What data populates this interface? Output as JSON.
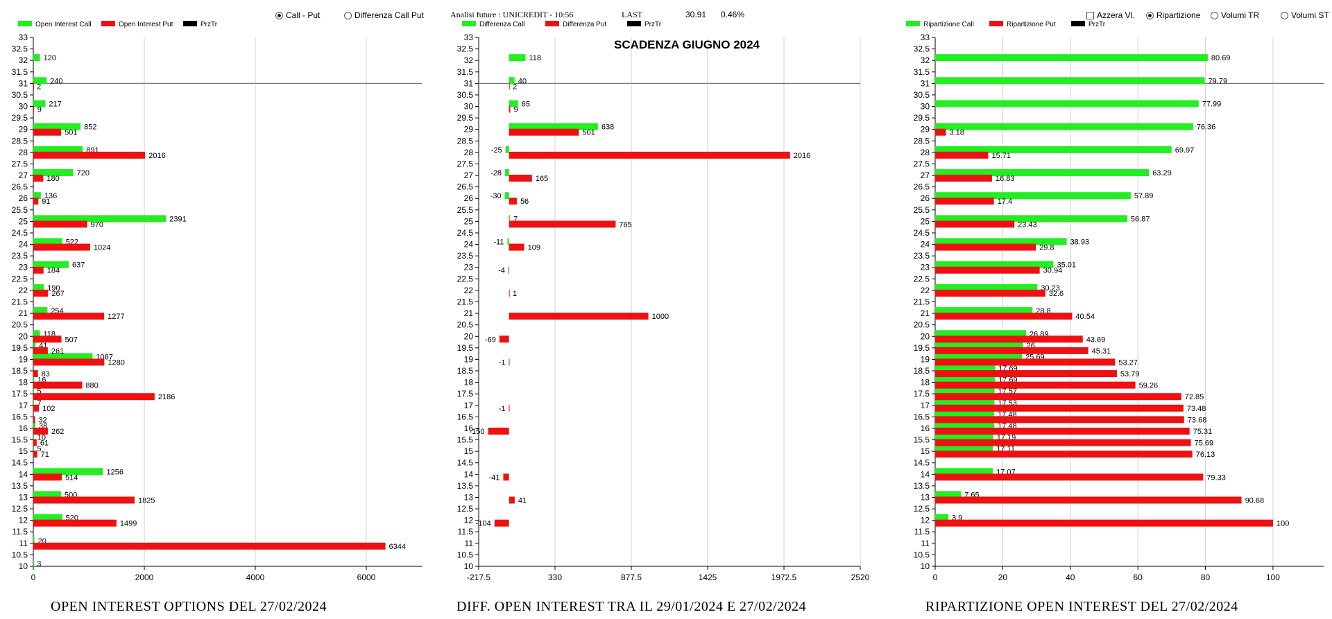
{
  "header": {
    "radio_call_put": "Call - Put",
    "radio_diff": "Differenza Call Put",
    "analysis_label": "Analisi future : UNICREDIT - 10:56",
    "last_label": "LAST",
    "last_value": "30.91",
    "last_change": "0.46%",
    "check_azzera": "Azzera Vl.",
    "radio_ripartizione": "Ripartizione",
    "radio_volumi_tr": "Volumi TR",
    "radio_volumi_st": "Volumi ST"
  },
  "colors": {
    "call": "#22ee22",
    "put": "#ee1111",
    "przTr": "#000000",
    "grid": "#d0d0d0"
  },
  "chart_data": [
    {
      "type": "bar",
      "orientation": "horizontal",
      "title": "OPEN INTEREST OPTIONS DEL 27/02/2024",
      "legend": [
        "Open Interest Call",
        "Open Interest Put",
        "PrzTr"
      ],
      "strike_range": [
        10,
        33
      ],
      "xlim": [
        0,
        7000
      ],
      "xticks": [
        "0",
        "2000",
        "4000",
        "6000"
      ],
      "xtick_values": [
        0,
        2000,
        4000,
        6000
      ],
      "price_line": 31,
      "series": [
        {
          "name": "Open Interest Call",
          "points": [
            {
              "s": 32,
              "v": 120
            },
            {
              "s": 31,
              "v": 240
            },
            {
              "s": 30,
              "v": 217
            },
            {
              "s": 29,
              "v": 852
            },
            {
              "s": 28,
              "v": 891
            },
            {
              "s": 27,
              "v": 720
            },
            {
              "s": 26,
              "v": 136
            },
            {
              "s": 25,
              "v": 2391
            },
            {
              "s": 24,
              "v": 522
            },
            {
              "s": 23,
              "v": 637
            },
            {
              "s": 22,
              "v": 190
            },
            {
              "s": 21,
              "v": 254
            },
            {
              "s": 20,
              "v": 118
            },
            {
              "s": 19.5,
              "v": 41
            },
            {
              "s": 19,
              "v": 1067
            },
            {
              "s": 18,
              "v": 16
            },
            {
              "s": 17.5,
              "v": 5
            },
            {
              "s": 17,
              "v": 7
            },
            {
              "s": 16,
              "v": 38
            },
            {
              "s": 15.5,
              "v": 10
            },
            {
              "s": 15,
              "v": 5
            },
            {
              "s": 14,
              "v": 1256
            },
            {
              "s": 13,
              "v": 500
            },
            {
              "s": 12,
              "v": 520
            },
            {
              "s": 11,
              "v": 20
            },
            {
              "s": 10,
              "v": 3
            }
          ]
        },
        {
          "name": "Open Interest Put",
          "points": [
            {
              "s": 31,
              "v": 2
            },
            {
              "s": 30,
              "v": 9
            },
            {
              "s": 29,
              "v": 501
            },
            {
              "s": 28,
              "v": 2016
            },
            {
              "s": 27,
              "v": 180
            },
            {
              "s": 26,
              "v": 91
            },
            {
              "s": 25,
              "v": 970
            },
            {
              "s": 24,
              "v": 1024
            },
            {
              "s": 23,
              "v": 184
            },
            {
              "s": 22,
              "v": 267
            },
            {
              "s": 21,
              "v": 1277
            },
            {
              "s": 20,
              "v": 507
            },
            {
              "s": 19.5,
              "v": 261
            },
            {
              "s": 19,
              "v": 1280
            },
            {
              "s": 18.5,
              "v": 83
            },
            {
              "s": 18,
              "v": 880
            },
            {
              "s": 17.5,
              "v": 2186
            },
            {
              "s": 17,
              "v": 102
            },
            {
              "s": 16.5,
              "v": 32
            },
            {
              "s": 16,
              "v": 262
            },
            {
              "s": 15.5,
              "v": 61
            },
            {
              "s": 15,
              "v": 71
            },
            {
              "s": 14,
              "v": 514
            },
            {
              "s": 13,
              "v": 1825
            },
            {
              "s": 12,
              "v": 1499
            },
            {
              "s": 11,
              "v": 6344
            }
          ]
        }
      ]
    },
    {
      "type": "bar",
      "orientation": "horizontal",
      "title": "DIFF. OPEN INTEREST TRA IL 29/01/2024 E 27/02/2024",
      "subtitle": "SCADENZA GIUGNO 2024",
      "legend": [
        "Differenza Call",
        "Differenza Put",
        "PrzTr"
      ],
      "strike_range": [
        10,
        33
      ],
      "xlim": [
        -217.5,
        2520
      ],
      "xticks": [
        "-217.5",
        "330",
        "877.5",
        "1425",
        "1972.5",
        "2520"
      ],
      "xtick_values": [
        -217.5,
        330,
        877.5,
        1425,
        1972.5,
        2520
      ],
      "price_line": 31,
      "series": [
        {
          "name": "Differenza Call",
          "points": [
            {
              "s": 32,
              "v": 118
            },
            {
              "s": 31,
              "v": 40
            },
            {
              "s": 30,
              "v": 65
            },
            {
              "s": 29,
              "v": 638
            },
            {
              "s": 28,
              "v": -25
            },
            {
              "s": 27,
              "v": -28
            },
            {
              "s": 26,
              "v": -30
            },
            {
              "s": 25,
              "v": 7
            },
            {
              "s": 24,
              "v": -11
            }
          ]
        },
        {
          "name": "Differenza Put",
          "points": [
            {
              "s": 31,
              "v": 2
            },
            {
              "s": 30,
              "v": 9
            },
            {
              "s": 29,
              "v": 501
            },
            {
              "s": 28,
              "v": 2016
            },
            {
              "s": 27,
              "v": 165
            },
            {
              "s": 26,
              "v": 56
            },
            {
              "s": 25,
              "v": 765
            },
            {
              "s": 24,
              "v": 109
            },
            {
              "s": 23,
              "v": -4
            },
            {
              "s": 22,
              "v": 1
            },
            {
              "s": 21,
              "v": 1000
            },
            {
              "s": 20,
              "v": -69
            },
            {
              "s": 19,
              "v": -1
            },
            {
              "s": 17,
              "v": -1
            },
            {
              "s": 16,
              "v": -150
            },
            {
              "s": 14,
              "v": -41
            },
            {
              "s": 13,
              "v": 41
            },
            {
              "s": 12,
              "v": -104
            }
          ]
        }
      ]
    },
    {
      "type": "bar",
      "orientation": "horizontal",
      "title": "RIPARTIZIONE OPEN INTEREST DEL 27/02/2024",
      "legend": [
        "Ripartizione Call",
        "Ripartizione Put",
        "PrzTr"
      ],
      "strike_range": [
        10,
        33
      ],
      "xlim": [
        0,
        115
      ],
      "xticks": [
        "0",
        "20",
        "40",
        "60",
        "80",
        "100"
      ],
      "xtick_values": [
        0,
        20,
        40,
        60,
        80,
        100
      ],
      "price_line": 31,
      "series": [
        {
          "name": "Ripartizione Call",
          "points": [
            {
              "s": 32,
              "v": 80.69
            },
            {
              "s": 31,
              "v": 79.79
            },
            {
              "s": 30,
              "v": 77.99
            },
            {
              "s": 29,
              "v": 76.36
            },
            {
              "s": 28,
              "v": 69.97
            },
            {
              "s": 27,
              "v": 63.29
            },
            {
              "s": 26,
              "v": 57.89
            },
            {
              "s": 25,
              "v": 56.87
            },
            {
              "s": 24,
              "v": 38.93
            },
            {
              "s": 23,
              "v": 35.01
            },
            {
              "s": 22,
              "v": 30.23
            },
            {
              "s": 21,
              "v": 28.8
            },
            {
              "s": 20,
              "v": 26.89
            },
            {
              "s": 19.5,
              "v": 26
            },
            {
              "s": 19,
              "v": 25.69
            },
            {
              "s": 18.5,
              "v": 17.69
            },
            {
              "s": 18,
              "v": 17.69
            },
            {
              "s": 17.5,
              "v": 17.57
            },
            {
              "s": 17,
              "v": 17.53
            },
            {
              "s": 16.5,
              "v": 17.48
            },
            {
              "s": 16,
              "v": 17.48
            },
            {
              "s": 15.5,
              "v": 17.19
            },
            {
              "s": 15,
              "v": 17.11
            },
            {
              "s": 14,
              "v": 17.07
            },
            {
              "s": 13,
              "v": 7.65
            },
            {
              "s": 12,
              "v": 3.9
            }
          ]
        },
        {
          "name": "Ripartizione Put",
          "points": [
            {
              "s": 29,
              "v": 3.18
            },
            {
              "s": 28,
              "v": 15.71
            },
            {
              "s": 27,
              "v": 16.83
            },
            {
              "s": 26,
              "v": 17.4
            },
            {
              "s": 25,
              "v": 23.43
            },
            {
              "s": 24,
              "v": 29.8
            },
            {
              "s": 23,
              "v": 30.94
            },
            {
              "s": 22,
              "v": 32.6
            },
            {
              "s": 21,
              "v": 40.54
            },
            {
              "s": 20,
              "v": 43.69
            },
            {
              "s": 19.5,
              "v": 45.31
            },
            {
              "s": 19,
              "v": 53.27
            },
            {
              "s": 18.5,
              "v": 53.79
            },
            {
              "s": 18,
              "v": 59.26
            },
            {
              "s": 17.5,
              "v": 72.85
            },
            {
              "s": 17,
              "v": 73.48
            },
            {
              "s": 16.5,
              "v": 73.68
            },
            {
              "s": 16,
              "v": 75.31
            },
            {
              "s": 15.5,
              "v": 75.69
            },
            {
              "s": 15,
              "v": 76.13
            },
            {
              "s": 14,
              "v": 79.33
            },
            {
              "s": 13,
              "v": 90.68
            },
            {
              "s": 12,
              "v": 100
            }
          ]
        }
      ]
    }
  ]
}
